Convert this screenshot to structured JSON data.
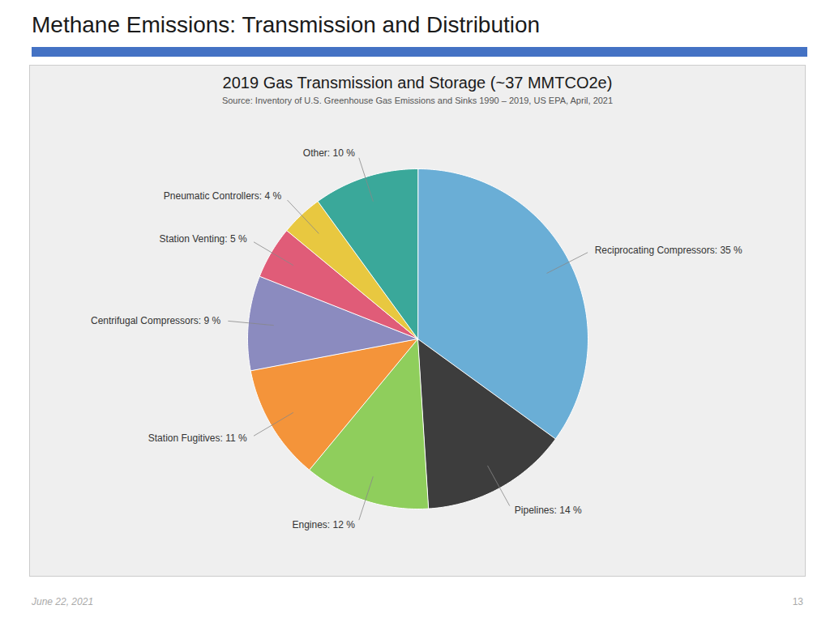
{
  "title": "Methane Emissions: Transmission and Distribution",
  "annotations": [
    "June 22, 2021",
    "13"
  ],
  "chart_data": {
    "type": "pie",
    "title": "2019 Gas Transmission and Storage (~37 MMTCO2e)",
    "subtitle": "Source: Inventory of U.S. Greenhouse Gas Emissions and Sinks 1990 – 2019, US EPA, April, 2021",
    "categories": [
      "Reciprocating Compressors",
      "Pipelines",
      "Engines",
      "Station Fugitives",
      "Centrifugal Compressors",
      "Station Venting",
      "Pneumatic Controllers",
      "Other"
    ],
    "values": [
      35,
      14,
      12,
      11,
      9,
      5,
      4,
      10
    ],
    "value_labels": [
      "Reciprocating Compressors: 35 %",
      "Pipelines: 14 %",
      "Engines: 12 %",
      "Station Fugitives: 11 %",
      "Centrifugal Compressors: 9 %",
      "Station Venting: 5 %",
      "Pneumatic Controllers: 4 %",
      "Other: 10 %"
    ],
    "colors": [
      "#6aaed6",
      "#3d3d3d",
      "#8fce5c",
      "#f4943a",
      "#8b8bbf",
      "#e05c78",
      "#e8c840",
      "#3aa89a"
    ],
    "data_labels": true
  }
}
